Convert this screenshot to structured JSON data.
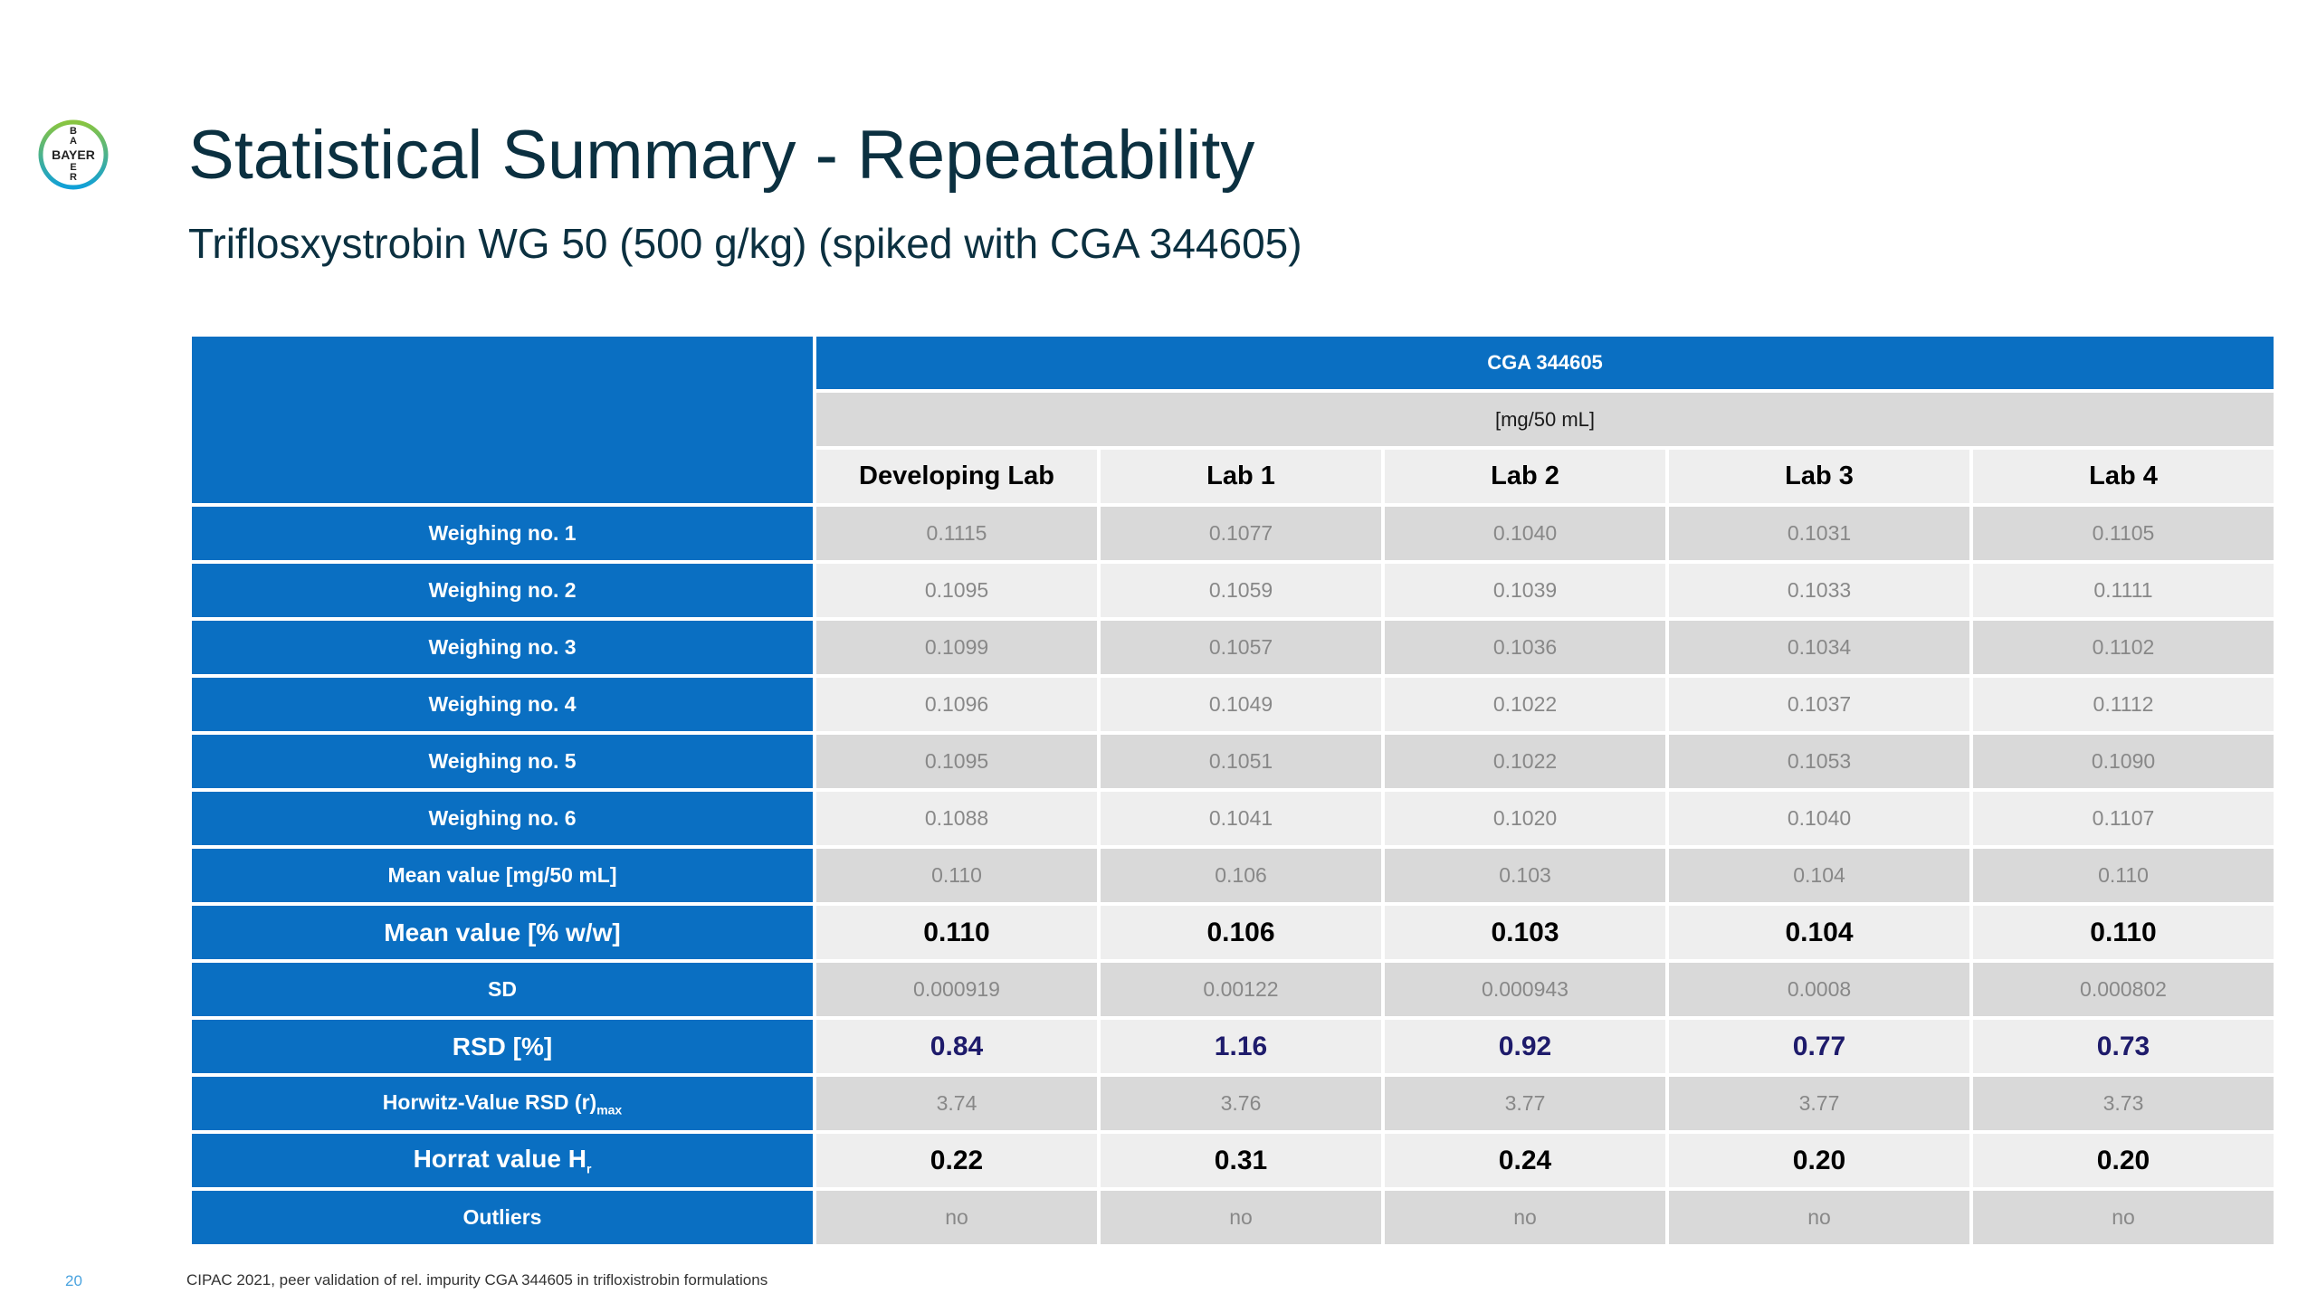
{
  "slide": {
    "title": "Statistical Summary - Repeatability",
    "subtitle": "Triflosxystrobin WG 50 (500 g/kg) (spiked with CGA 344605)",
    "page_number": "20",
    "footnote": "CIPAC 2021, peer validation of rel. impurity CGA 344605 in trifloxistrobin formulations"
  },
  "logo": {
    "letters_horizontal": "BAYER",
    "letters_vertical": [
      "B",
      "A",
      "Y",
      "E",
      "R"
    ],
    "ring_colors": [
      "#89c540",
      "#10a0d8"
    ]
  },
  "colors": {
    "header_blue": "#0a6fc2",
    "title_text": "#0b3040",
    "cell_dark": "#d9d9d9",
    "cell_light": "#eeeeee",
    "value_grey": "#888888",
    "rsd_navy": "#1e1b6b"
  },
  "table": {
    "group_header": "CGA 344605",
    "unit": "[mg/50 mL]",
    "columns": [
      "Developing Lab",
      "Lab 1",
      "Lab 2",
      "Lab 3",
      "Lab 4"
    ],
    "rows": [
      {
        "label": "Weighing no. 1",
        "values": [
          "0.1115",
          "0.1077",
          "0.1040",
          "0.1031",
          "0.1105"
        ]
      },
      {
        "label": "Weighing no. 2",
        "values": [
          "0.1095",
          "0.1059",
          "0.1039",
          "0.1033",
          "0.1111"
        ]
      },
      {
        "label": "Weighing no. 3",
        "values": [
          "0.1099",
          "0.1057",
          "0.1036",
          "0.1034",
          "0.1102"
        ]
      },
      {
        "label": "Weighing no. 4",
        "values": [
          "0.1096",
          "0.1049",
          "0.1022",
          "0.1037",
          "0.1112"
        ]
      },
      {
        "label": "Weighing no. 5",
        "values": [
          "0.1095",
          "0.1051",
          "0.1022",
          "0.1053",
          "0.1090"
        ]
      },
      {
        "label": "Weighing no. 6",
        "values": [
          "0.1088",
          "0.1041",
          "0.1020",
          "0.1040",
          "0.1107"
        ]
      },
      {
        "label": "Mean value [mg/50 mL]",
        "values": [
          "0.110",
          "0.106",
          "0.103",
          "0.104",
          "0.110"
        ]
      },
      {
        "label": "Mean value [% w/w]",
        "values": [
          "0.110",
          "0.106",
          "0.103",
          "0.104",
          "0.110"
        ]
      },
      {
        "label": "SD",
        "values": [
          "0.000919",
          "0.00122",
          "0.000943",
          "0.0008",
          "0.000802"
        ]
      },
      {
        "label": "RSD [%]",
        "values": [
          "0.84",
          "1.16",
          "0.92",
          "0.77",
          "0.73"
        ]
      },
      {
        "label": "Horwitz-Value RSD (r)",
        "label_sub": "max",
        "values": [
          "3.74",
          "3.76",
          "3.77",
          "3.77",
          "3.73"
        ]
      },
      {
        "label": "Horrat value H",
        "label_sub": "r",
        "values": [
          "0.22",
          "0.31",
          "0.24",
          "0.20",
          "0.20"
        ]
      },
      {
        "label": "Outliers",
        "values": [
          "no",
          "no",
          "no",
          "no",
          "no"
        ]
      }
    ]
  }
}
